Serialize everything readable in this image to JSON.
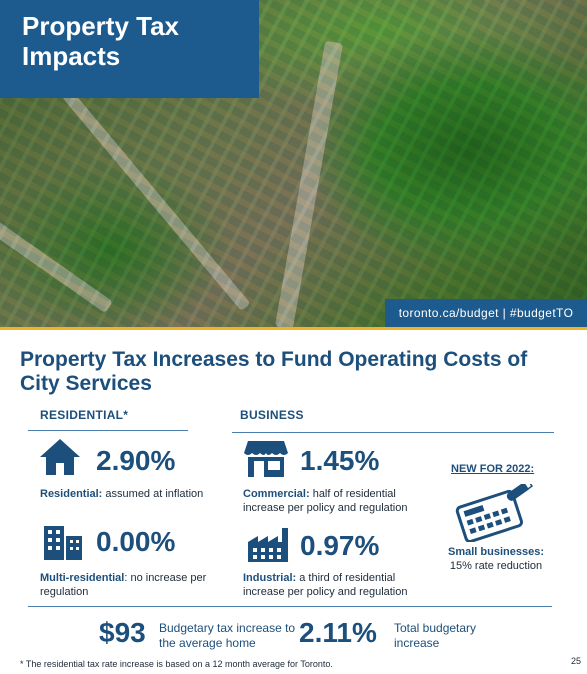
{
  "hero": {
    "title": "Property Tax Impacts",
    "url_text": "toronto.ca/budget | #budgetTO"
  },
  "main_title": "Property Tax Increases to Fund Operating Costs of City Services",
  "residential": {
    "heading": "RESIDENTIAL*",
    "items": [
      {
        "icon": "house-icon",
        "value": "2.90%",
        "label_bold": "Residential:",
        "label": " assumed at inflation"
      },
      {
        "icon": "apartment-building-icon",
        "value": "0.00%",
        "label_bold": "Multi-residential",
        "label": ": no increase per regulation"
      }
    ]
  },
  "business": {
    "heading": "BUSINESS",
    "items": [
      {
        "icon": "storefront-icon",
        "value": "1.45%",
        "label_bold": "Commercial:",
        "label": " half of residential increase per policy and regulation"
      },
      {
        "icon": "factory-icon",
        "value": "0.97%",
        "label_bold": "Industrial:",
        "label": " a third of residential increase per policy and regulation"
      }
    ]
  },
  "new_for_2022": {
    "label": "NEW FOR 2022:",
    "icon": "calculator-icon",
    "title": "Small businesses:",
    "text": "15% rate reduction"
  },
  "summary": {
    "amount": "$93",
    "amount_desc": "Budgetary tax increase to the average home",
    "percent": "2.11%",
    "percent_desc": "Total budgetary increase"
  },
  "footnote": "* The residential tax rate increase is based on a 12 month average for Toronto.",
  "page_number": "25",
  "colors": {
    "brand_blue": "#1d5b8f",
    "text_blue": "#1d4f7c",
    "accent_yellow": "#f0b323"
  }
}
